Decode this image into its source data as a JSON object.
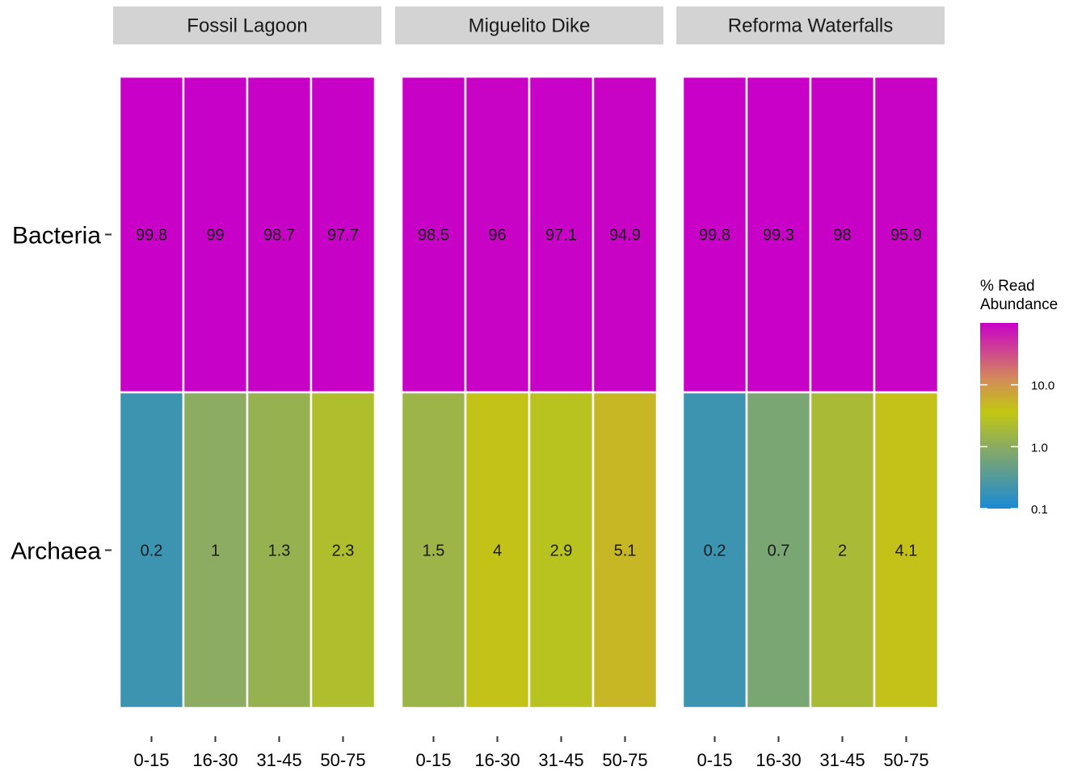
{
  "chart_data": {
    "type": "heatmap",
    "panels": [
      "Fossil Lagoon",
      "Miguelito Dike",
      "Reforma Waterfalls"
    ],
    "rows": [
      "Bacteria",
      "Archaea"
    ],
    "columns": [
      "0-15",
      "16-30",
      "31-45",
      "50-75"
    ],
    "values": {
      "Fossil Lagoon": {
        "Bacteria": [
          99.8,
          99,
          98.7,
          97.7
        ],
        "Archaea": [
          0.2,
          1,
          1.3,
          2.3
        ]
      },
      "Miguelito Dike": {
        "Bacteria": [
          98.5,
          96,
          97.1,
          94.9
        ],
        "Archaea": [
          1.5,
          4,
          2.9,
          5.1
        ]
      },
      "Reforma Waterfalls": {
        "Bacteria": [
          99.8,
          99.3,
          98,
          95.9
        ],
        "Archaea": [
          0.2,
          0.7,
          2,
          4.1
        ]
      }
    },
    "value_labels": {
      "Fossil Lagoon": {
        "Bacteria": [
          "99.8",
          "99",
          "98.7",
          "97.7"
        ],
        "Archaea": [
          "0.2",
          "1",
          "1.3",
          "2.3"
        ]
      },
      "Miguelito Dike": {
        "Bacteria": [
          "98.5",
          "96",
          "97.1",
          "94.9"
        ],
        "Archaea": [
          "1.5",
          "4",
          "2.9",
          "5.1"
        ]
      },
      "Reforma Waterfalls": {
        "Bacteria": [
          "99.8",
          "99.3",
          "98",
          "95.9"
        ],
        "Archaea": [
          "0.2",
          "0.7",
          "2",
          "4.1"
        ]
      }
    },
    "legend": {
      "title_lines": [
        "% Read",
        "Abundance"
      ],
      "scale": "log10",
      "range": [
        0.1,
        99.8
      ],
      "ticks": [
        0.1,
        1.0,
        10.0
      ],
      "tick_labels": [
        "0.1",
        "1.0",
        "10.0"
      ],
      "placement": "right"
    },
    "colors": {
      "low": "#1a8ad4",
      "stops": [
        "#1a8ad4",
        "#8aab62",
        "#c2c811",
        "#d48a5a",
        "#c800c8"
      ],
      "strip_background": "#d3d3d3",
      "cell_border": "#ffffff"
    },
    "grid": false
  }
}
